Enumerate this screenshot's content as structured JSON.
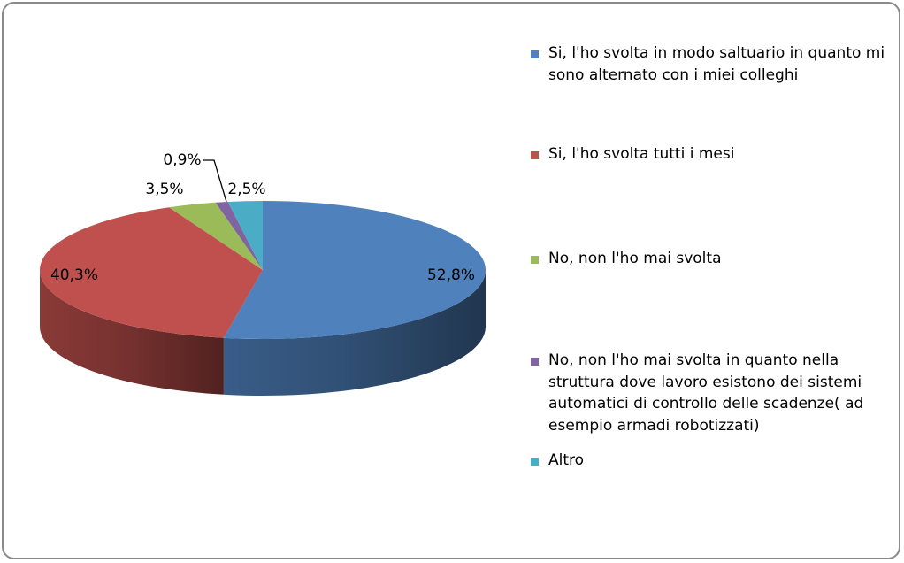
{
  "chart_data": {
    "type": "pie",
    "title": "",
    "categories": [
      "Si, l'ho svolta in modo saltuario in quanto mi sono alternato con i miei colleghi",
      "Si, l'ho svolta tutti i mesi",
      "No, non l'ho mai svolta",
      "No, non l'ho mai svolta in quanto nella struttura dove lavoro esistono dei sistemi automatici di controllo delle scadenze( ad esempio armadi robotizzati)",
      "Altro"
    ],
    "values": [
      52.8,
      40.3,
      3.5,
      0.9,
      2.5
    ],
    "data_labels": [
      "52,8%",
      "40,3%",
      "3,5%",
      "0,9%",
      "2,5%"
    ],
    "colors": [
      "#4f81bd",
      "#c0504d",
      "#9bbb59",
      "#8064a2",
      "#4bacc6"
    ],
    "style": "3d-pie",
    "legend_position": "right"
  }
}
